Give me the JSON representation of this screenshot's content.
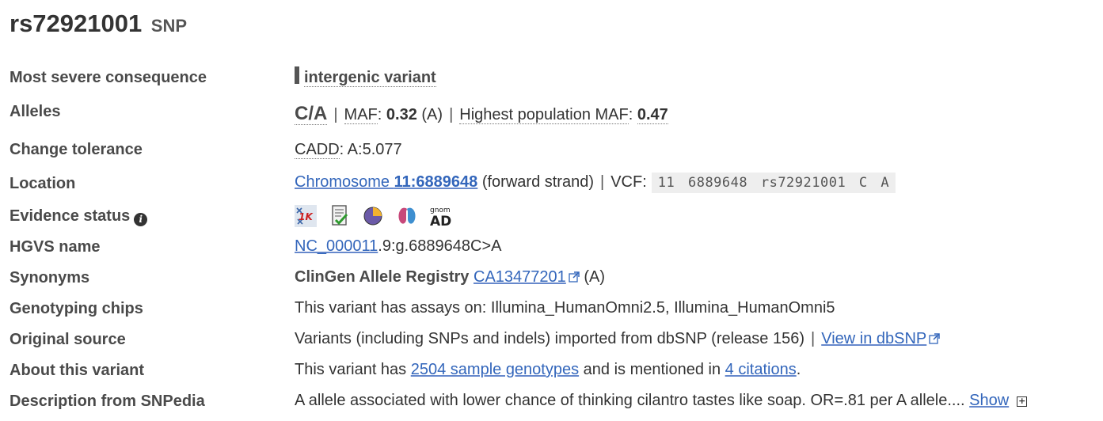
{
  "title": {
    "id": "rs72921001",
    "type": "SNP"
  },
  "rows": {
    "consequence": {
      "label": "Most severe consequence",
      "value": "intergenic variant"
    },
    "alleles": {
      "label": "Alleles",
      "value": "C/A",
      "sep": "|",
      "maf_label": "MAF",
      "maf_colon": ":",
      "maf_value": "0.32",
      "maf_allele": "(A)",
      "highest_label": "Highest population MAF",
      "highest_colon": ":",
      "highest_value": "0.47"
    },
    "tolerance": {
      "label": "Change tolerance",
      "cadd_label": "CADD",
      "cadd_value": ": A:5.077"
    },
    "location": {
      "label": "Location",
      "chrom_prefix": "Chromosome ",
      "chrom_pos": "11:6889648",
      "strand": "(forward strand)",
      "sep": "|",
      "vcf_label": "VCF:",
      "vcf_value": "11  6889648  rs72921001  C  A"
    },
    "evidence": {
      "label": "Evidence status",
      "icons": [
        "1000-genomes-icon",
        "cited-icon",
        "frequency-icon",
        "phenotype-icon",
        "gnomad-icon"
      ],
      "gnomad_top": "gnom",
      "gnomad_bottom": "AD",
      "thousand_g": "1K"
    },
    "hgvs": {
      "label": "HGVS name",
      "link": "NC_000011",
      "rest": ".9:g.6889648C>A"
    },
    "synonyms": {
      "label": "Synonyms",
      "registry": "ClinGen Allele Registry",
      "link": "CA13477201",
      "allele": "(A)"
    },
    "chips": {
      "label": "Genotyping chips",
      "value": "This variant has assays on: Illumina_HumanOmni2.5, Illumina_HumanOmni5"
    },
    "source": {
      "label": "Original source",
      "value": "Variants (including SNPs and indels) imported from dbSNP (release 156)",
      "sep": "|",
      "link": "View in dbSNP"
    },
    "about": {
      "label": "About this variant",
      "prefix": "This variant has ",
      "genotypes_link": "2504 sample genotypes",
      "middle": " and is mentioned in ",
      "citations_link": "4 citations",
      "suffix": "."
    },
    "snpedia": {
      "label": "Description from SNPedia",
      "value": "A allele associated with lower chance of thinking cilantro tastes like soap. OR=.81 per A allele....",
      "show_link": "Show",
      "plus": "+"
    }
  }
}
